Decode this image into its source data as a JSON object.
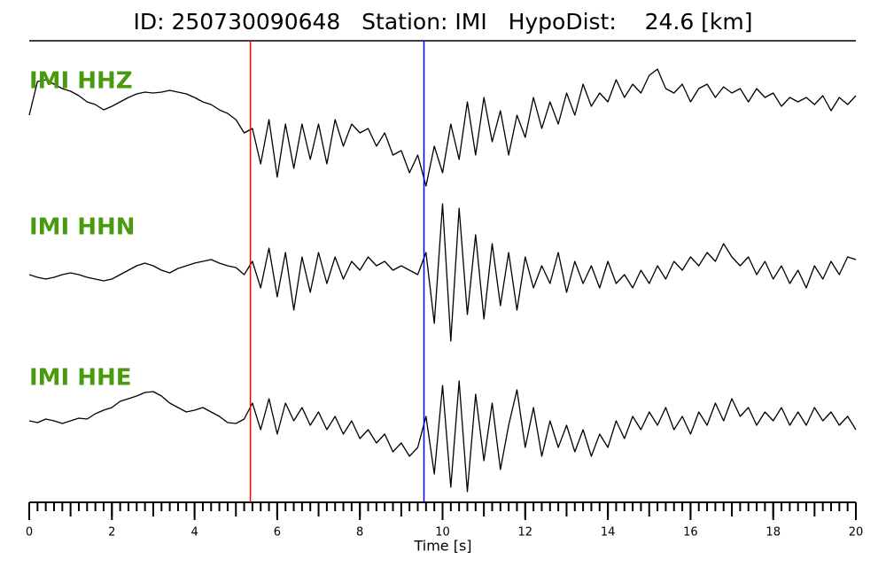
{
  "chart_data": {
    "type": "line",
    "title": "ID: 250730090648   Station: IMI   HypoDist:    24.6 [km]",
    "x_label": "Time [s]",
    "xlim": [
      0,
      20
    ],
    "xticks": [
      0,
      2,
      4,
      6,
      8,
      10,
      12,
      14,
      16,
      18,
      20
    ],
    "xminor_step": 0.2,
    "ylim": [
      -80,
      80
    ],
    "label_color": "#4a9a10",
    "picks": [
      {
        "value": 5.35,
        "color": "#ff0000"
      },
      {
        "value": 9.55,
        "color": "#0000ff"
      }
    ],
    "x": [
      0,
      0.2,
      0.4,
      0.6,
      0.8,
      1,
      1.2,
      1.4,
      1.6,
      1.8,
      2,
      2.2,
      2.4,
      2.6,
      2.8,
      3,
      3.2,
      3.4,
      3.6,
      3.8,
      4,
      4.2,
      4.4,
      4.6,
      4.8,
      5,
      5.2,
      5.4,
      5.6,
      5.8,
      6,
      6.2,
      6.4,
      6.6,
      6.8,
      7,
      7.2,
      7.4,
      7.6,
      7.8,
      8,
      8.2,
      8.4,
      8.6,
      8.8,
      9,
      9.2,
      9.4,
      9.6,
      9.8,
      10,
      10.2,
      10.4,
      10.6,
      10.8,
      11,
      11.2,
      11.4,
      11.6,
      11.8,
      12,
      12.2,
      12.4,
      12.6,
      12.8,
      13,
      13.2,
      13.4,
      13.6,
      13.8,
      14,
      14.2,
      14.4,
      14.6,
      14.8,
      15,
      15.2,
      15.4,
      15.6,
      15.8,
      16,
      16.2,
      16.4,
      16.6,
      16.8,
      17,
      17.2,
      17.4,
      17.6,
      17.8,
      18,
      18.2,
      18.4,
      18.6,
      18.8,
      19,
      19.2,
      19.4,
      19.6,
      19.8,
      20
    ],
    "series": [
      {
        "name": "IMI HHZ",
        "color": "#000000",
        "values": [
          10,
          48,
          50,
          45,
          40,
          37,
          32,
          25,
          22,
          16,
          20,
          25,
          30,
          34,
          36,
          35,
          36,
          38,
          36,
          34,
          30,
          25,
          22,
          16,
          12,
          5,
          -10,
          -5,
          -45,
          5,
          -60,
          0,
          -50,
          0,
          -40,
          0,
          -45,
          5,
          -25,
          0,
          -10,
          -5,
          -25,
          -10,
          -35,
          -30,
          -55,
          -35,
          -70,
          -25,
          -55,
          0,
          -40,
          25,
          -35,
          30,
          -20,
          15,
          -35,
          10,
          -15,
          30,
          -5,
          25,
          0,
          35,
          10,
          45,
          20,
          35,
          25,
          50,
          30,
          45,
          35,
          55,
          62,
          40,
          35,
          45,
          25,
          40,
          45,
          30,
          42,
          35,
          40,
          25,
          40,
          30,
          35,
          20,
          30,
          25,
          30,
          22,
          32,
          15,
          30,
          22,
          32
        ]
      },
      {
        "name": "IMI HHN",
        "color": "#000000",
        "values": [
          -5,
          -8,
          -10,
          -8,
          -5,
          -3,
          -5,
          -8,
          -10,
          -12,
          -10,
          -5,
          0,
          5,
          8,
          5,
          0,
          -3,
          2,
          5,
          8,
          10,
          12,
          8,
          5,
          3,
          -5,
          10,
          -20,
          25,
          -30,
          20,
          -45,
          15,
          -25,
          20,
          -15,
          15,
          -10,
          10,
          0,
          15,
          5,
          10,
          0,
          5,
          0,
          -5,
          20,
          -60,
          75,
          -80,
          70,
          -50,
          40,
          -55,
          30,
          -40,
          20,
          -45,
          15,
          -20,
          5,
          -15,
          20,
          -25,
          10,
          -15,
          5,
          -20,
          10,
          -15,
          -5,
          -20,
          0,
          -15,
          5,
          -10,
          10,
          0,
          15,
          5,
          20,
          10,
          30,
          15,
          5,
          15,
          -5,
          10,
          -10,
          5,
          -15,
          0,
          -20,
          5,
          -10,
          10,
          -5,
          15,
          12
        ]
      },
      {
        "name": "IMI HHE",
        "color": "#000000",
        "values": [
          0,
          -2,
          2,
          0,
          -3,
          0,
          3,
          2,
          8,
          12,
          15,
          22,
          25,
          28,
          32,
          33,
          28,
          20,
          15,
          10,
          12,
          15,
          10,
          5,
          -2,
          -3,
          2,
          20,
          -10,
          25,
          -15,
          20,
          0,
          15,
          -5,
          10,
          -10,
          5,
          -15,
          0,
          -20,
          -10,
          -25,
          -15,
          -35,
          -25,
          -40,
          -30,
          5,
          -60,
          40,
          -75,
          45,
          -80,
          30,
          -45,
          20,
          -55,
          -5,
          35,
          -30,
          15,
          -40,
          0,
          -30,
          -5,
          -35,
          -10,
          -40,
          -15,
          -30,
          0,
          -20,
          5,
          -10,
          10,
          -5,
          15,
          -10,
          5,
          -15,
          10,
          -5,
          20,
          0,
          25,
          5,
          15,
          -5,
          10,
          0,
          15,
          -5,
          10,
          -5,
          15,
          0,
          10,
          -5,
          5,
          -10
        ]
      }
    ]
  }
}
